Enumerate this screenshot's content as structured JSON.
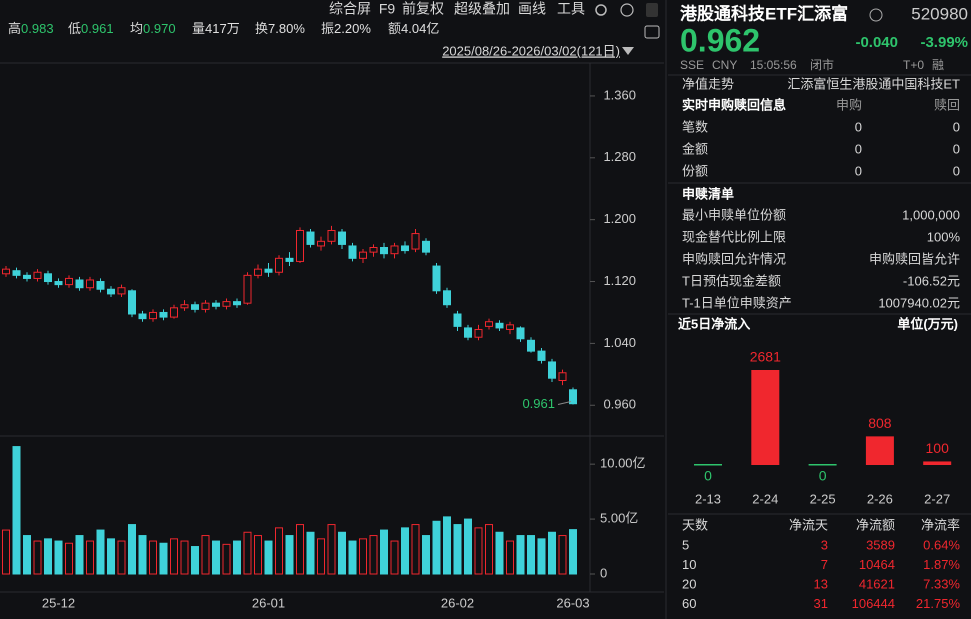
{
  "toolbar": [
    "综合屏",
    "F9",
    "前复权",
    "超级叠加",
    "画线",
    "工具"
  ],
  "stats": [
    {
      "label": "高",
      "value": "0.983",
      "color": "#2ec46c"
    },
    {
      "label": "低",
      "value": "0.961",
      "color": "#2ec46c"
    },
    {
      "label": "均",
      "value": "0.970",
      "color": "#2ec46c"
    },
    {
      "label": "量",
      "value": "417万",
      "color": "#e0e0e0"
    },
    {
      "label": "换",
      "value": "7.80%",
      "color": "#e0e0e0"
    },
    {
      "label": "振",
      "value": "2.20%",
      "color": "#e0e0e0"
    },
    {
      "label": "额",
      "value": "4.04亿",
      "color": "#e0e0e0"
    }
  ],
  "range": "2025/08/26-2026/03/02(121日)",
  "chart_data": [
    {
      "type": "candlestick",
      "up_color": "#f0272e",
      "down_color": "#3fd2d9",
      "grid": false,
      "categories": [
        null,
        null,
        null,
        null,
        null,
        "25-12",
        null,
        null,
        null,
        null,
        null,
        null,
        null,
        null,
        null,
        null,
        null,
        null,
        null,
        null,
        null,
        null,
        null,
        null,
        null,
        "26-01",
        null,
        null,
        null,
        null,
        null,
        null,
        null,
        null,
        null,
        null,
        null,
        null,
        null,
        null,
        null,
        null,
        null,
        "26-02",
        null,
        null,
        null,
        null,
        null,
        null,
        null,
        null,
        null,
        null,
        "26-03"
      ],
      "open": [
        1.13,
        1.134,
        1.128,
        1.124,
        1.13,
        1.12,
        1.116,
        1.122,
        1.112,
        1.12,
        1.11,
        1.104,
        1.108,
        1.078,
        1.072,
        1.08,
        1.074,
        1.086,
        1.09,
        1.084,
        1.092,
        1.088,
        1.094,
        1.092,
        1.128,
        1.136,
        1.132,
        1.15,
        1.146,
        1.184,
        1.166,
        1.172,
        1.184,
        1.166,
        1.15,
        1.158,
        1.164,
        1.156,
        1.166,
        1.162,
        1.172,
        1.14,
        1.108,
        1.078,
        1.06,
        1.048,
        1.062,
        1.066,
        1.058,
        1.06,
        1.044,
        1.03,
        1.016,
        0.992,
        0.98
      ],
      "close": [
        1.136,
        1.128,
        1.124,
        1.132,
        1.12,
        1.116,
        1.124,
        1.112,
        1.122,
        1.11,
        1.104,
        1.112,
        1.078,
        1.072,
        1.08,
        1.074,
        1.086,
        1.09,
        1.084,
        1.092,
        1.088,
        1.094,
        1.09,
        1.128,
        1.136,
        1.132,
        1.15,
        1.146,
        1.186,
        1.168,
        1.172,
        1.186,
        1.168,
        1.15,
        1.158,
        1.164,
        1.156,
        1.166,
        1.16,
        1.182,
        1.158,
        1.108,
        1.09,
        1.062,
        1.048,
        1.058,
        1.068,
        1.06,
        1.064,
        1.046,
        1.03,
        1.018,
        0.995,
        1.002,
        0.962
      ],
      "high": [
        1.14,
        1.138,
        1.132,
        1.136,
        1.134,
        1.124,
        1.128,
        1.126,
        1.126,
        1.124,
        1.114,
        1.116,
        1.11,
        1.082,
        1.084,
        1.084,
        1.09,
        1.096,
        1.094,
        1.096,
        1.096,
        1.098,
        1.098,
        1.132,
        1.142,
        1.144,
        1.154,
        1.158,
        1.19,
        1.188,
        1.178,
        1.192,
        1.188,
        1.17,
        1.162,
        1.168,
        1.17,
        1.17,
        1.172,
        1.188,
        1.176,
        1.144,
        1.112,
        1.082,
        1.064,
        1.064,
        1.072,
        1.07,
        1.068,
        1.062,
        1.048,
        1.034,
        1.02,
        1.006,
        0.983
      ],
      "low": [
        1.126,
        1.124,
        1.12,
        1.12,
        1.116,
        1.112,
        1.112,
        1.108,
        1.108,
        1.106,
        1.1,
        1.1,
        1.074,
        1.068,
        1.068,
        1.07,
        1.072,
        1.082,
        1.08,
        1.08,
        1.084,
        1.084,
        1.086,
        1.09,
        1.124,
        1.126,
        1.128,
        1.14,
        1.144,
        1.164,
        1.16,
        1.168,
        1.162,
        1.146,
        1.144,
        1.152,
        1.15,
        1.15,
        1.156,
        1.158,
        1.154,
        1.104,
        1.086,
        1.056,
        1.044,
        1.044,
        1.058,
        1.056,
        1.052,
        1.042,
        1.028,
        1.014,
        0.99,
        0.986,
        0.961
      ],
      "ylim": [
        0.928,
        1.4
      ],
      "yticks": [
        {
          "value": 1.36,
          "label": "1.360"
        },
        {
          "value": 1.28,
          "label": "1.280"
        },
        {
          "value": 1.2,
          "label": "1.200"
        },
        {
          "value": 1.12,
          "label": "1.120"
        },
        {
          "value": 1.04,
          "label": "1.040"
        },
        {
          "value": 0.96,
          "label": "0.960"
        }
      ]
    },
    {
      "type": "bar",
      "values": [
        4.0,
        11.6,
        3.5,
        3.0,
        3.2,
        3.0,
        2.8,
        3.5,
        3.0,
        4.0,
        3.2,
        3.0,
        4.5,
        3.5,
        3.0,
        2.8,
        3.2,
        3.0,
        2.5,
        3.5,
        3.0,
        2.7,
        3.0,
        3.8,
        3.5,
        3.0,
        4.2,
        3.5,
        4.5,
        3.8,
        3.2,
        4.5,
        3.8,
        3.0,
        3.2,
        3.5,
        4.0,
        3.0,
        4.2,
        4.5,
        3.5,
        4.8,
        5.2,
        4.5,
        5.0,
        4.2,
        4.5,
        3.8,
        3.0,
        3.5,
        3.5,
        3.2,
        3.8,
        3.5,
        4.04
      ],
      "ylim": [
        0,
        12.2
      ],
      "yticks": [
        {
          "value": 10,
          "label": "10.00亿"
        },
        {
          "value": 5,
          "label": "5.00亿"
        },
        0
      ]
    },
    {
      "type": "bar",
      "title": "近5日净流入",
      "unit": "单位(万元)",
      "categories": [
        "2-13",
        "2-24",
        "2-25",
        "2-26",
        "2-27"
      ],
      "values": [
        0,
        2681,
        0,
        808,
        100
      ],
      "color": "#f0272e",
      "zero_color": "#2ec46c",
      "ylim": [
        0,
        2681
      ]
    }
  ],
  "panel": {
    "name": "港股通科技ETF汇添富",
    "code": "520980",
    "price": "0.962",
    "change": "-0.040",
    "pct": "-3.99%",
    "meta": [
      "SSE",
      "CNY",
      "15:05:56",
      "闭市",
      "T+0",
      "融"
    ],
    "nav": {
      "label": "净值走势",
      "value": "汇添富恒生港股通中国科技ET"
    },
    "realtime": {
      "title": "实时申购赎回信息",
      "columns": [
        "申购",
        "赎回"
      ],
      "rows": [
        [
          "笔数",
          "0",
          "0"
        ],
        [
          "金额",
          "0",
          "0"
        ],
        [
          "份额",
          "0",
          "0"
        ]
      ]
    },
    "list": {
      "title": "申赎清单",
      "rows": [
        [
          "最小申赎单位份额",
          "1,000,000"
        ],
        [
          "现金替代比例上限",
          "100%"
        ],
        [
          "申购赎回允许情况",
          "申购赎回皆允许"
        ],
        [
          "T日预估现金差额",
          "-106.52元"
        ],
        [
          "T-1日单位申赎资产",
          "1007940.02元"
        ]
      ]
    },
    "flow_table": {
      "header": [
        "天数",
        "净流天",
        "净流额",
        "净流率"
      ],
      "rows": [
        [
          "5",
          "3",
          "3589",
          "0.64%"
        ],
        [
          "10",
          "7",
          "10464",
          "1.87%"
        ],
        [
          "20",
          "13",
          "41621",
          "7.33%"
        ],
        [
          "60",
          "31",
          "106444",
          "21.75%"
        ]
      ]
    }
  }
}
